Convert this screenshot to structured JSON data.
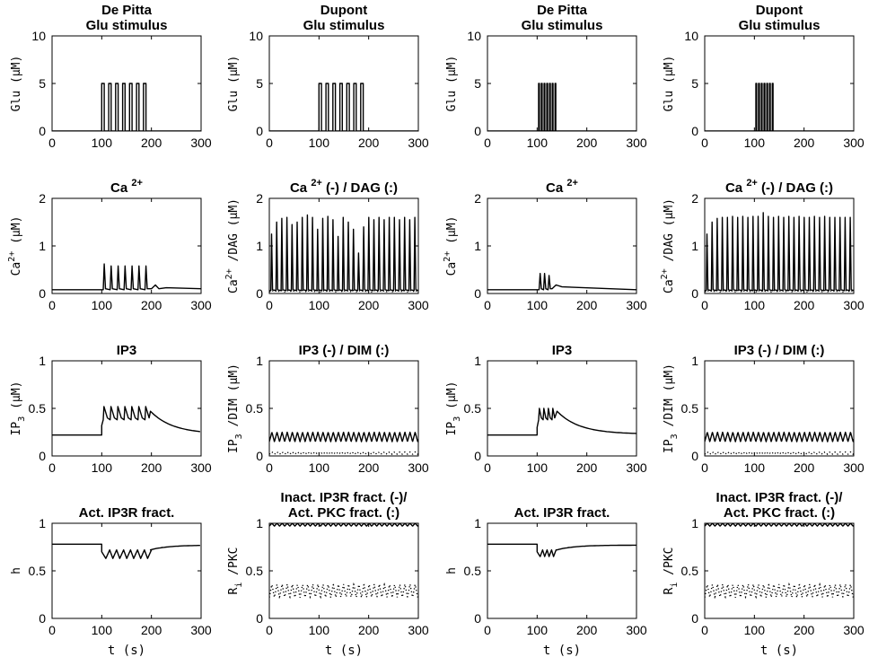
{
  "chart_data": [
    {
      "type": "line",
      "id": "glu-depitta-1",
      "title": [
        "De  Pitta",
        "Glu  stimulus"
      ],
      "ylabel": "Glu (μM)",
      "xlabel": "",
      "xlim": [
        0,
        300
      ],
      "ylim": [
        0,
        10
      ],
      "xticks": [
        0,
        100,
        200,
        300
      ],
      "yticks": [
        0,
        5,
        10
      ],
      "ytick_labels": [
        "0",
        "5",
        "10"
      ],
      "series": [
        {
          "name": "Glu",
          "style": "solid",
          "kind": "pulse",
          "base": 0,
          "amp": 5,
          "start": 100,
          "period": 14,
          "width": 5,
          "count": 7
        }
      ]
    },
    {
      "type": "line",
      "id": "glu-dupont-1",
      "title": [
        "Dupont",
        "Glu  stimulus"
      ],
      "ylabel": "Glu (μM)",
      "xlabel": "",
      "xlim": [
        0,
        300
      ],
      "ylim": [
        0,
        10
      ],
      "xticks": [
        0,
        100,
        200,
        300
      ],
      "yticks": [
        0,
        5,
        10
      ],
      "ytick_labels": [
        "0",
        "5",
        "10"
      ],
      "series": [
        {
          "name": "Glu",
          "style": "solid",
          "kind": "pulse",
          "base": 0,
          "amp": 5,
          "start": 100,
          "period": 14,
          "width": 5,
          "count": 7
        }
      ]
    },
    {
      "type": "line",
      "id": "glu-depitta-2",
      "title": [
        "De  Pitta",
        "Glu  stimulus"
      ],
      "ylabel": "Glu (μM)",
      "xlabel": "",
      "xlim": [
        0,
        300
      ],
      "ylim": [
        0,
        10
      ],
      "xticks": [
        0,
        100,
        200,
        300
      ],
      "yticks": [
        0,
        5,
        10
      ],
      "ytick_labels": [
        "0",
        "5",
        "10"
      ],
      "series": [
        {
          "name": "Glu",
          "style": "solid",
          "kind": "pulse",
          "base": 0,
          "amp": 5,
          "start": 103,
          "period": 5.5,
          "width": 1.5,
          "count": 7
        }
      ]
    },
    {
      "type": "line",
      "id": "glu-dupont-2",
      "title": [
        "Dupont",
        "Glu  stimulus"
      ],
      "ylabel": "Glu (μM)",
      "xlabel": "",
      "xlim": [
        0,
        300
      ],
      "ylim": [
        0,
        10
      ],
      "xticks": [
        0,
        100,
        200,
        300
      ],
      "yticks": [
        0,
        5,
        10
      ],
      "ytick_labels": [
        "0",
        "5",
        "10"
      ],
      "series": [
        {
          "name": "Glu",
          "style": "solid",
          "kind": "pulse",
          "base": 0,
          "amp": 5,
          "start": 103,
          "period": 5.5,
          "width": 1.5,
          "count": 7
        }
      ]
    },
    {
      "type": "line",
      "id": "ca-depitta-1",
      "title": [
        "Ca 2+"
      ],
      "ylabel": "Ca 2+ (μM)",
      "xlabel": "",
      "xlim": [
        0,
        300
      ],
      "ylim": [
        0,
        2
      ],
      "xticks": [
        0,
        100,
        200,
        300
      ],
      "yticks": [
        0,
        1,
        2
      ],
      "ytick_labels": [
        "0",
        "1",
        "2"
      ],
      "series": [
        {
          "name": "Ca",
          "style": "solid",
          "kind": "spikes",
          "base": 0.08,
          "start": 103,
          "period": 14,
          "count": 7,
          "peaks": [
            0.62,
            0.58,
            0.58,
            0.58,
            0.58,
            0.58,
            0.58
          ],
          "rise": 2,
          "decay": 2.5,
          "tail": [
            [
              200,
              0.1
            ],
            [
              208,
              0.18
            ],
            [
              215,
              0.1
            ],
            [
              230,
              0.12
            ],
            [
              300,
              0.1
            ]
          ]
        }
      ]
    },
    {
      "type": "line",
      "id": "ca-dupont-1",
      "title": [
        "Ca 2+",
        "(-)",
        "/ DAG",
        "(:)"
      ],
      "ylabel": "Ca 2+ /DAG (μM)",
      "xlabel": "",
      "xlim": [
        0,
        300
      ],
      "ylim": [
        0,
        2
      ],
      "xticks": [
        0,
        100,
        200,
        300
      ],
      "yticks": [
        0,
        1,
        2
      ],
      "ytick_labels": [
        "0",
        "1",
        "2"
      ],
      "series": [
        {
          "name": "Ca",
          "style": "solid",
          "kind": "spikes",
          "base": 0.06,
          "start": 3,
          "period": 10.3,
          "count": 29,
          "peaks": [
            1.25,
            1.5,
            1.58,
            1.6,
            1.45,
            1.5,
            1.6,
            1.65,
            1.6,
            1.35,
            1.58,
            1.62,
            1.55,
            1.2,
            1.6,
            1.5,
            1.35,
            0.85,
            1.4,
            1.6,
            1.55,
            1.6,
            1.55,
            1.6,
            1.6,
            1.55,
            1.6,
            1.55,
            1.6
          ],
          "rise": 1.5,
          "decay": 2
        },
        {
          "name": "DAG",
          "style": "dotted",
          "kind": "osc",
          "mean": 0.05,
          "amp": 0.015,
          "period": 10.3
        }
      ]
    },
    {
      "type": "line",
      "id": "ca-depitta-2",
      "title": [
        "Ca 2+"
      ],
      "ylabel": "Ca 2+ (μM)",
      "xlabel": "",
      "xlim": [
        0,
        300
      ],
      "ylim": [
        0,
        2
      ],
      "xticks": [
        0,
        100,
        200,
        300
      ],
      "yticks": [
        0,
        1,
        2
      ],
      "ytick_labels": [
        "0",
        "1",
        "2"
      ],
      "series": [
        {
          "name": "Ca",
          "style": "solid",
          "kind": "spikes",
          "base": 0.08,
          "start": 104,
          "period": 9,
          "count": 3,
          "peaks": [
            0.42,
            0.42,
            0.38
          ],
          "rise": 2,
          "decay": 2.5,
          "tail": [
            [
              130,
              0.1
            ],
            [
              138,
              0.18
            ],
            [
              150,
              0.14
            ],
            [
              300,
              0.08
            ]
          ]
        }
      ]
    },
    {
      "type": "line",
      "id": "ca-dupont-2",
      "title": [
        "Ca 2+",
        "(-)",
        "/ DAG",
        "(:)"
      ],
      "ylabel": "Ca 2+ /DAG (μM)",
      "xlabel": "",
      "xlim": [
        0,
        300
      ],
      "ylim": [
        0,
        2
      ],
      "xticks": [
        0,
        100,
        200,
        300
      ],
      "yticks": [
        0,
        1,
        2
      ],
      "ytick_labels": [
        "0",
        "1",
        "2"
      ],
      "series": [
        {
          "name": "Ca",
          "style": "solid",
          "kind": "spikes",
          "base": 0.06,
          "start": 3,
          "period": 10.3,
          "count": 29,
          "peaks": [
            1.25,
            1.5,
            1.58,
            1.6,
            1.6,
            1.62,
            1.6,
            1.62,
            1.6,
            1.62,
            1.62,
            1.7,
            1.62,
            1.6,
            1.62,
            1.6,
            1.62,
            1.6,
            1.62,
            1.6,
            1.6,
            1.62,
            1.6,
            1.62,
            1.6,
            1.6,
            1.6,
            1.6,
            1.6
          ],
          "rise": 1.5,
          "decay": 2
        },
        {
          "name": "DAG",
          "style": "dotted",
          "kind": "osc",
          "mean": 0.05,
          "amp": 0.015,
          "period": 10.3
        }
      ]
    },
    {
      "type": "line",
      "id": "ip3-depitta-1",
      "title": [
        "IP3"
      ],
      "ylabel": "IP 3 (μM)",
      "xlabel": "",
      "xlim": [
        0,
        300
      ],
      "ylim": [
        0,
        1
      ],
      "xticks": [
        0,
        100,
        200,
        300
      ],
      "yticks": [
        0,
        0.5,
        1
      ],
      "ytick_labels": [
        "0",
        "0.5",
        "1"
      ],
      "series": [
        {
          "name": "IP3",
          "style": "solid",
          "kind": "ip3",
          "base": 0.22,
          "start": 100,
          "end": 198,
          "jump": 0.32,
          "period": 14,
          "count": 7,
          "osc_low": 0.38,
          "osc_high": 0.52,
          "peak": 0.47,
          "final": 0.23
        }
      ]
    },
    {
      "type": "line",
      "id": "ip3-dupont-1",
      "title": [
        "IP3",
        "(-)",
        "/ DIM",
        "(:)"
      ],
      "ylabel": "IP 3 /DIM (μM)",
      "xlabel": "",
      "xlim": [
        0,
        300
      ],
      "ylim": [
        0,
        1
      ],
      "xticks": [
        0,
        100,
        200,
        300
      ],
      "yticks": [
        0,
        0.5,
        1
      ],
      "ytick_labels": [
        "0",
        "0.5",
        "1"
      ],
      "series": [
        {
          "name": "IP3",
          "style": "solid",
          "kind": "osc",
          "mean": 0.2,
          "amp": 0.05,
          "period": 10.3
        },
        {
          "name": "DIM",
          "style": "dotted",
          "kind": "osc",
          "mean": 0.03,
          "amp": 0.012,
          "period": 10.3
        }
      ]
    },
    {
      "type": "line",
      "id": "ip3-depitta-2",
      "title": [
        "IP3"
      ],
      "ylabel": "IP 3 (μM)",
      "xlabel": "",
      "xlim": [
        0,
        300
      ],
      "ylim": [
        0,
        1
      ],
      "xticks": [
        0,
        100,
        200,
        300
      ],
      "yticks": [
        0,
        0.5,
        1
      ],
      "ytick_labels": [
        "0",
        "0.5",
        "1"
      ],
      "series": [
        {
          "name": "IP3",
          "style": "solid",
          "kind": "ip3",
          "base": 0.22,
          "start": 100,
          "end": 140,
          "jump": 0.3,
          "period": 9,
          "count": 4,
          "osc_low": 0.38,
          "osc_high": 0.5,
          "peak": 0.47,
          "final": 0.23
        }
      ]
    },
    {
      "type": "line",
      "id": "ip3-dupont-2",
      "title": [
        "IP3",
        "(-)",
        "/ DIM",
        "(:)"
      ],
      "ylabel": "IP 3 /DIM (μM)",
      "xlabel": "",
      "xlim": [
        0,
        300
      ],
      "ylim": [
        0,
        1
      ],
      "xticks": [
        0,
        100,
        200,
        300
      ],
      "yticks": [
        0,
        0.5,
        1
      ],
      "ytick_labels": [
        "0",
        "0.5",
        "1"
      ],
      "series": [
        {
          "name": "IP3",
          "style": "solid",
          "kind": "osc",
          "mean": 0.2,
          "amp": 0.05,
          "period": 10.3
        },
        {
          "name": "DIM",
          "style": "dotted",
          "kind": "osc",
          "mean": 0.03,
          "amp": 0.012,
          "period": 10.3
        }
      ]
    },
    {
      "type": "line",
      "id": "h-depitta-1",
      "title": [
        "Act.",
        "IP3R",
        "fract."
      ],
      "ylabel": "h",
      "xlabel": "t (s)",
      "xlim": [
        0,
        300
      ],
      "ylim": [
        0,
        1
      ],
      "xticks": [
        0,
        100,
        200,
        300
      ],
      "yticks": [
        0,
        0.5,
        1
      ],
      "ytick_labels": [
        "0",
        "0.5",
        "1"
      ],
      "series": [
        {
          "name": "h",
          "style": "solid",
          "kind": "h",
          "base": 0.78,
          "start": 100,
          "end": 198,
          "period": 14,
          "count": 7,
          "low": 0.63,
          "high": 0.72,
          "final": 0.77
        }
      ]
    },
    {
      "type": "line",
      "id": "r-dupont-1",
      "title": [
        "Inact.",
        "IP3R",
        "fract.",
        "(-)/",
        "Act.",
        "PKC",
        "fract.",
        "(:)"
      ],
      "ylabel": "R i /PKC",
      "xlabel": "t (s)",
      "xlim": [
        0,
        300
      ],
      "ylim": [
        0,
        1
      ],
      "xticks": [
        0,
        100,
        200,
        300
      ],
      "yticks": [
        0,
        0.5,
        1
      ],
      "ytick_labels": [
        "0",
        "0.5",
        "1"
      ],
      "series": [
        {
          "name": "Ri",
          "style": "solid",
          "kind": "osc",
          "mean": 0.985,
          "amp": 0.015,
          "period": 10.3
        },
        {
          "name": "PKC",
          "style": "dotted",
          "kind": "osc",
          "mean": 0.29,
          "amp": 0.07,
          "period": 10.3
        }
      ]
    },
    {
      "type": "line",
      "id": "h-depitta-2",
      "title": [
        "Act.",
        "IP3R",
        "fract."
      ],
      "ylabel": "h",
      "xlabel": "t (s)",
      "xlim": [
        0,
        300
      ],
      "ylim": [
        0,
        1
      ],
      "xticks": [
        0,
        100,
        200,
        300
      ],
      "yticks": [
        0,
        0.5,
        1
      ],
      "ytick_labels": [
        "0",
        "0.5",
        "1"
      ],
      "series": [
        {
          "name": "h",
          "style": "solid",
          "kind": "h",
          "base": 0.78,
          "start": 100,
          "end": 140,
          "period": 9,
          "count": 4,
          "low": 0.65,
          "high": 0.72,
          "final": 0.77
        }
      ]
    },
    {
      "type": "line",
      "id": "r-dupont-2",
      "title": [
        "Inact.",
        "IP3R",
        "fract.",
        "(-)/",
        "Act.",
        "PKC",
        "fract.",
        "(:)"
      ],
      "ylabel": "R i /PKC",
      "xlabel": "t (s)",
      "xlim": [
        0,
        300
      ],
      "ylim": [
        0,
        1
      ],
      "xticks": [
        0,
        100,
        200,
        300
      ],
      "yticks": [
        0,
        0.5,
        1
      ],
      "ytick_labels": [
        "0",
        "0.5",
        "1"
      ],
      "series": [
        {
          "name": "Ri",
          "style": "solid",
          "kind": "osc",
          "mean": 0.985,
          "amp": 0.015,
          "period": 10.3
        },
        {
          "name": "PKC",
          "style": "dotted",
          "kind": "osc",
          "mean": 0.29,
          "amp": 0.07,
          "period": 10.3
        }
      ]
    }
  ]
}
